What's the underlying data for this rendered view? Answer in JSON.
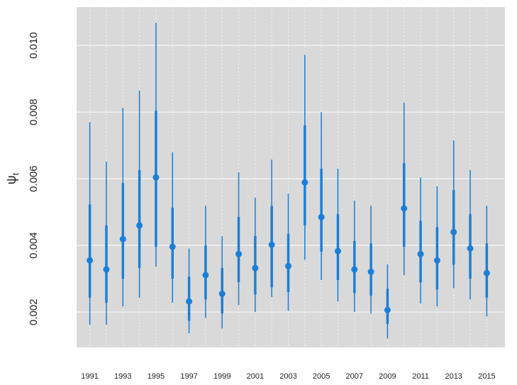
{
  "chart_data": {
    "type": "interval",
    "ylabel": "ψ",
    "ylabel_subscript": "t",
    "x": [
      1991,
      1992,
      1993,
      1994,
      1995,
      1996,
      1997,
      1998,
      1999,
      2000,
      2001,
      2002,
      2003,
      2004,
      2005,
      2006,
      2007,
      2008,
      2009,
      2010,
      2011,
      2012,
      2013,
      2014,
      2015
    ],
    "values": [
      0.00355,
      0.00328,
      0.00419,
      0.0046,
      0.00604,
      0.00396,
      0.00232,
      0.00311,
      0.00255,
      0.00374,
      0.00332,
      0.00402,
      0.00338,
      0.00589,
      0.00485,
      0.00383,
      0.00328,
      0.00321,
      0.00206,
      0.00511,
      0.00374,
      0.00355,
      0.0044,
      0.00391,
      0.00317
    ],
    "inner_lower": [
      0.00243,
      0.00228,
      0.003,
      0.00332,
      0.00396,
      0.003,
      0.00174,
      0.00238,
      0.00196,
      0.0029,
      0.00253,
      0.00274,
      0.0026,
      0.0046,
      0.00381,
      0.00296,
      0.00257,
      0.00249,
      0.00164,
      0.00396,
      0.00289,
      0.00268,
      0.00342,
      0.003,
      0.00243
    ],
    "inner_upper": [
      0.00523,
      0.0046,
      0.00587,
      0.00626,
      0.00804,
      0.00513,
      0.00306,
      0.004,
      0.00332,
      0.00485,
      0.00428,
      0.00519,
      0.00434,
      0.0076,
      0.0063,
      0.00494,
      0.00413,
      0.00406,
      0.0027,
      0.00647,
      0.00474,
      0.00455,
      0.00566,
      0.00494,
      0.00406
    ],
    "outer_lower": [
      0.00162,
      0.00162,
      0.00217,
      0.00243,
      0.00336,
      0.00228,
      0.00136,
      0.00183,
      0.00151,
      0.00221,
      0.002,
      0.00245,
      0.00204,
      0.00357,
      0.00296,
      0.00232,
      0.002,
      0.00196,
      0.00121,
      0.00311,
      0.00226,
      0.00217,
      0.00272,
      0.00238,
      0.00187
    ],
    "outer_upper": [
      0.0077,
      0.00651,
      0.00813,
      0.00864,
      0.01068,
      0.00679,
      0.00391,
      0.00519,
      0.00428,
      0.00619,
      0.00543,
      0.00657,
      0.00555,
      0.00972,
      0.008,
      0.0063,
      0.00534,
      0.00519,
      0.00343,
      0.00828,
      0.00604,
      0.00577,
      0.00715,
      0.00626,
      0.00519
    ],
    "color": "#1b7fd6",
    "background": "#d9d9d9",
    "grid": true,
    "xlim": [
      1990.2,
      2016.1
    ],
    "ylim": [
      0.00094,
      0.01115
    ],
    "xticks": [
      1991,
      1993,
      1995,
      1997,
      1999,
      2001,
      2003,
      2005,
      2007,
      2009,
      2011,
      2013,
      2015
    ],
    "yticks": [
      0.002,
      0.004,
      0.006,
      0.008,
      {
        "value": 0.01,
        "label": "0.010"
      }
    ]
  }
}
